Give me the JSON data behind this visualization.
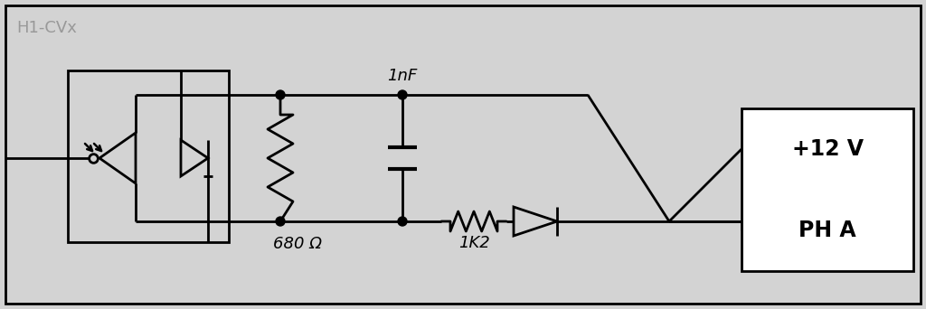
{
  "bg_color": "#d3d3d3",
  "line_color": "#000000",
  "box_bg": "#ffffff",
  "title_label": "H1-CVx",
  "label_680": "680 Ω",
  "label_1nF": "1nF",
  "label_1K2": "1K2",
  "label_12V": "+12 V",
  "label_PHA": "PH A",
  "lw": 2.0,
  "figsize": [
    10.24,
    3.42
  ],
  "dpi": 100
}
